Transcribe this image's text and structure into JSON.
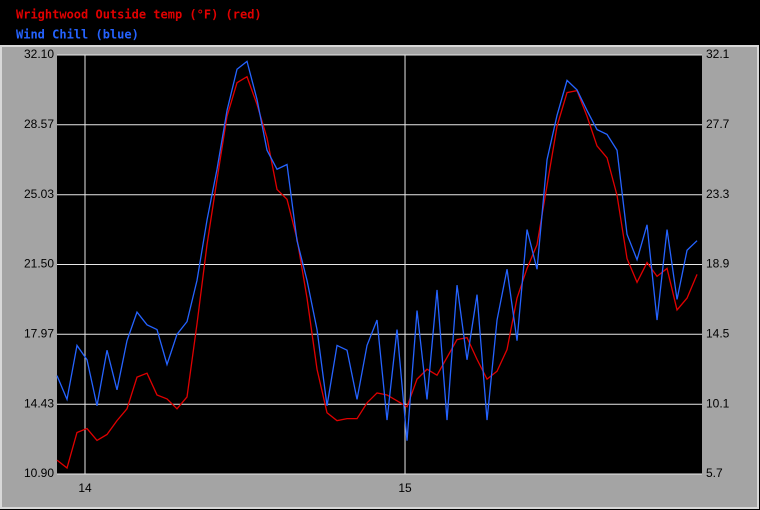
{
  "chart_data": {
    "type": "line",
    "x": [
      13.9125,
      13.94375,
      13.975,
      14.00625,
      14.0375,
      14.06875,
      14.1,
      14.13125,
      14.1625,
      14.19375,
      14.225,
      14.25625,
      14.2875,
      14.31875,
      14.35,
      14.38125,
      14.4125,
      14.44375,
      14.475,
      14.50625,
      14.5375,
      14.56875,
      14.6,
      14.63125,
      14.6625,
      14.69375,
      14.725,
      14.75625,
      14.7875,
      14.81875,
      14.85,
      14.88125,
      14.9125,
      14.94375,
      14.975,
      15.00625,
      15.0375,
      15.06875,
      15.1,
      15.13125,
      15.1625,
      15.19375,
      15.225,
      15.25625,
      15.2875,
      15.31875,
      15.35,
      15.38125,
      15.4125,
      15.44375,
      15.475,
      15.50625,
      15.5375,
      15.56875,
      15.6,
      15.63125,
      15.6625,
      15.69375,
      15.725,
      15.75625,
      15.7875,
      15.81875,
      15.85,
      15.88125,
      15.9125
    ],
    "series": [
      {
        "name": "Wrightwood Outside temp (°F) (red)",
        "color": "#e00000",
        "values": [
          11.6,
          11.2,
          13.0,
          13.2,
          12.6,
          12.9,
          13.6,
          14.2,
          15.8,
          16.0,
          14.9,
          14.7,
          14.2,
          14.8,
          18.5,
          22.5,
          25.8,
          29.0,
          30.7,
          31.0,
          29.6,
          27.9,
          25.3,
          24.8,
          22.8,
          19.8,
          16.2,
          14.0,
          13.6,
          13.7,
          13.7,
          14.5,
          15.0,
          14.9,
          14.6,
          14.3,
          15.7,
          16.2,
          15.9,
          16.8,
          17.7,
          17.8,
          16.7,
          15.7,
          16.1,
          17.2,
          19.8,
          21.3,
          22.5,
          25.5,
          28.5,
          30.2,
          30.3,
          29.0,
          27.5,
          26.9,
          25.0,
          21.8,
          20.6,
          21.6,
          20.9,
          21.3,
          19.2,
          19.8,
          21.0
        ]
      },
      {
        "name": "Wind Chill (blue)",
        "color": "#2563ff",
        "axis": "y2",
        "values": [
          11.9,
          10.4,
          13.8,
          12.9,
          10.0,
          13.5,
          11.0,
          14.1,
          15.9,
          15.1,
          14.8,
          12.6,
          14.5,
          15.3,
          17.9,
          21.7,
          24.9,
          28.6,
          31.2,
          31.7,
          29.3,
          26.1,
          24.9,
          25.2,
          20.4,
          17.9,
          14.8,
          10.0,
          13.8,
          13.5,
          10.4,
          13.8,
          15.4,
          9.1,
          14.8,
          7.8,
          16.0,
          10.4,
          17.3,
          9.1,
          17.6,
          12.9,
          17.0,
          9.1,
          15.4,
          18.6,
          14.1,
          21.1,
          18.6,
          25.5,
          28.3,
          30.5,
          29.9,
          28.6,
          27.4,
          27.1,
          26.1,
          20.8,
          19.2,
          21.4,
          15.4,
          21.1,
          16.7,
          19.8,
          20.4
        ]
      }
    ],
    "xlim": [
      13.9125,
      15.928
    ],
    "xticks": [
      14,
      15
    ],
    "ylim": [
      10.9,
      32.1
    ],
    "yticks": [
      {
        "value": 10.9,
        "label": "10.90"
      },
      14.43,
      {
        "value": 17.97,
        "label": "17.97"
      },
      {
        "value": 21.5,
        "label": "21.50"
      },
      25.03,
      28.57,
      {
        "value": 32.1,
        "label": "32.10"
      }
    ],
    "y2lim": [
      5.7,
      32.1
    ],
    "y2ticks": [
      5.7,
      10.1,
      14.5,
      18.9,
      23.3,
      27.7,
      32.1
    ],
    "grid": true
  }
}
